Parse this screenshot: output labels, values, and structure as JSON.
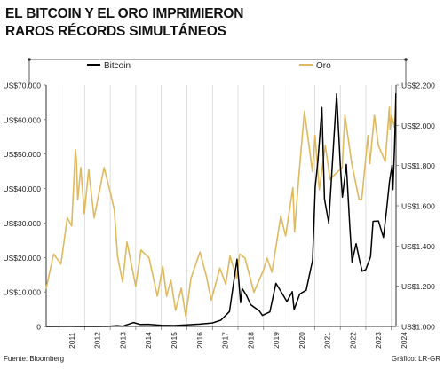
{
  "title_lines": [
    "EL BITCOIN Y EL ORO IMPRIMIERON",
    "RAROS RÉCORDS SIMULTÁNEOS"
  ],
  "source": "Fuente: Bloomberg",
  "credit": "Gráfico: LR-GR",
  "colors": {
    "bitcoin": "#000000",
    "gold": "#e0b95f",
    "grid": "#c9c9c9"
  },
  "chart_data": {
    "type": "line",
    "x_ticks": [
      "2011",
      "2012",
      "2013",
      "2014",
      "2015",
      "2016",
      "2017",
      "2018",
      "2019",
      "2020",
      "2021",
      "2022",
      "2023",
      "2024"
    ],
    "y_left": {
      "min": 0,
      "max": 70000,
      "ticks": [
        0,
        10000,
        20000,
        30000,
        40000,
        50000,
        60000,
        70000
      ],
      "labels": [
        "0",
        "US$10.000",
        "US$20.000",
        "US$30.000",
        "US$40.000",
        "US$50.000",
        "US$60.000",
        "US$70.000"
      ]
    },
    "y_right": {
      "min": 1000,
      "max": 2200,
      "ticks": [
        1000,
        1200,
        1400,
        1600,
        1800,
        2000,
        2200
      ],
      "labels": [
        "US$1.000",
        "US$1.200",
        "US$1.400",
        "US$1.600",
        "US$1.800",
        "US$2.000",
        "US$2.200"
      ]
    },
    "grid": "vertical",
    "legend_position": "top",
    "series": [
      {
        "name": "Bitcoin",
        "axis": "left",
        "x": [
          "2010-07-01",
          "2011-06-08",
          "2011-11-01",
          "2012-06-01",
          "2012-12-01",
          "2013-04-09",
          "2013-07-01",
          "2013-11-30",
          "2014-03-01",
          "2014-07-01",
          "2015-01-01",
          "2015-07-01",
          "2016-01-01",
          "2016-07-01",
          "2017-01-01",
          "2017-05-01",
          "2017-09-01",
          "2017-12-17",
          "2018-02-06",
          "2018-03-01",
          "2018-05-01",
          "2018-07-01",
          "2018-11-01",
          "2018-12-15",
          "2019-04-01",
          "2019-06-26",
          "2019-09-01",
          "2019-12-01",
          "2020-02-15",
          "2020-03-12",
          "2020-06-01",
          "2020-09-01",
          "2020-12-01",
          "2021-01-08",
          "2021-02-15",
          "2021-04-14",
          "2021-05-20",
          "2021-07-20",
          "2021-09-07",
          "2021-11-10",
          "2022-01-01",
          "2022-02-01",
          "2022-03-28",
          "2022-05-15",
          "2022-06-18",
          "2022-08-15",
          "2022-10-01",
          "2022-11-10",
          "2022-12-31",
          "2023-03-10",
          "2023-04-14",
          "2023-07-01",
          "2023-09-10",
          "2023-10-25",
          "2023-12-05",
          "2024-01-11",
          "2024-01-23",
          "2024-02-15",
          "2024-02-29",
          "2024-03-05"
        ],
        "values": [
          0,
          30,
          3,
          7,
          13,
          230,
          90,
          1130,
          600,
          630,
          300,
          260,
          430,
          660,
          1000,
          1800,
          4300,
          19500,
          6900,
          11000,
          9000,
          6300,
          4500,
          3200,
          4200,
          12500,
          10300,
          7200,
          10100,
          4900,
          9400,
          10500,
          19200,
          40500,
          48000,
          63500,
          37000,
          30000,
          46000,
          67500,
          47000,
          37500,
          47000,
          30000,
          18700,
          24000,
          19400,
          16000,
          16500,
          20200,
          30500,
          30600,
          25800,
          34000,
          42000,
          46700,
          39700,
          52000,
          62000,
          67500
        ]
      },
      {
        "name": "Oro",
        "axis": "right",
        "x": [
          "2010-07-01",
          "2010-10-15",
          "2011-01-28",
          "2011-04-29",
          "2011-06-30",
          "2011-08-22",
          "2011-09-06",
          "2011-09-26",
          "2011-11-08",
          "2011-12-29",
          "2012-02-28",
          "2012-05-16",
          "2012-10-05",
          "2012-12-31",
          "2013-02-28",
          "2013-04-15",
          "2013-06-28",
          "2013-08-28",
          "2013-12-31",
          "2014-03-17",
          "2014-07-10",
          "2014-11-06",
          "2015-01-22",
          "2015-03-17",
          "2015-05-18",
          "2015-07-24",
          "2015-10-14",
          "2015-12-17",
          "2016-03-01",
          "2016-07-06",
          "2016-10-06",
          "2016-12-15",
          "2017-04-17",
          "2017-07-10",
          "2017-09-08",
          "2017-12-12",
          "2018-01-25",
          "2018-04-11",
          "2018-08-16",
          "2018-12-31",
          "2019-02-20",
          "2019-05-02",
          "2019-09-04",
          "2019-11-12",
          "2020-02-24",
          "2020-03-19",
          "2020-05-18",
          "2020-08-06",
          "2020-11-30",
          "2021-01-05",
          "2021-03-08",
          "2021-06-01",
          "2021-08-09",
          "2021-09-29",
          "2022-01-28",
          "2022-03-08",
          "2022-06-14",
          "2022-09-27",
          "2022-11-03",
          "2023-02-01",
          "2023-02-28",
          "2023-05-03",
          "2023-06-30",
          "2023-10-05",
          "2023-12-04",
          "2023-12-13",
          "2024-01-05",
          "2024-02-14",
          "2024-03-05"
        ],
        "values": [
          1190,
          1360,
          1310,
          1540,
          1500,
          1880,
          1830,
          1630,
          1790,
          1560,
          1780,
          1540,
          1790,
          1670,
          1580,
          1350,
          1220,
          1420,
          1200,
          1380,
          1340,
          1150,
          1300,
          1150,
          1230,
          1080,
          1190,
          1050,
          1240,
          1370,
          1250,
          1130,
          1290,
          1210,
          1350,
          1240,
          1360,
          1340,
          1170,
          1280,
          1340,
          1270,
          1550,
          1450,
          1690,
          1470,
          1740,
          2070,
          1770,
          1950,
          1680,
          1900,
          1730,
          1750,
          1790,
          2050,
          1810,
          1630,
          1630,
          1950,
          1810,
          2050,
          1900,
          1820,
          2090,
          1980,
          2050,
          1990,
          2130
        ]
      }
    ]
  }
}
